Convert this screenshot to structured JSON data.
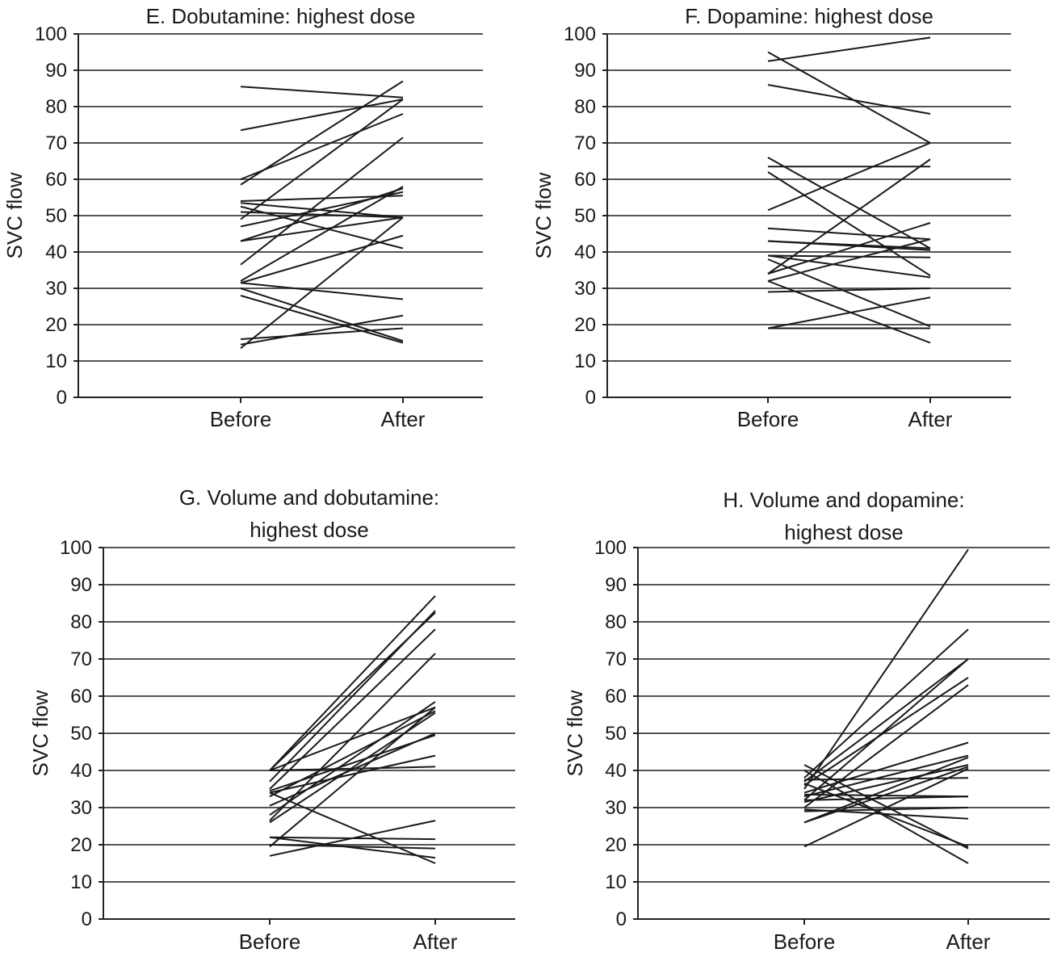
{
  "chart_data": [
    {
      "type": "line",
      "title": "E. Dobutamine: highest dose",
      "title_lines": [
        "E. Dobutamine: highest dose"
      ],
      "xlabel": "",
      "ylabel": "SVC flow",
      "categories": [
        "Before",
        "After"
      ],
      "ylim": [
        0,
        100
      ],
      "yticks": [
        0,
        10,
        20,
        30,
        40,
        50,
        60,
        70,
        80,
        90,
        100
      ],
      "grid": true,
      "series": [
        {
          "values": [
            85.5,
            82.5
          ]
        },
        {
          "values": [
            73.5,
            82.0
          ]
        },
        {
          "values": [
            60.0,
            78.0
          ]
        },
        {
          "values": [
            58.5,
            87.0
          ]
        },
        {
          "values": [
            54.0,
            55.5
          ]
        },
        {
          "values": [
            53.5,
            49.5
          ]
        },
        {
          "values": [
            52.5,
            41.0
          ]
        },
        {
          "values": [
            51.0,
            49.5
          ]
        },
        {
          "values": [
            49.0,
            82.0
          ]
        },
        {
          "values": [
            47.0,
            56.5
          ]
        },
        {
          "values": [
            43.0,
            57.5
          ]
        },
        {
          "values": [
            43.0,
            49.5
          ]
        },
        {
          "values": [
            36.5,
            71.5
          ]
        },
        {
          "values": [
            32.0,
            58.0
          ]
        },
        {
          "values": [
            31.5,
            44.5
          ]
        },
        {
          "values": [
            31.5,
            27.0
          ]
        },
        {
          "values": [
            30.0,
            15.5
          ]
        },
        {
          "values": [
            28.0,
            15.0
          ]
        },
        {
          "values": [
            16.0,
            19.0
          ]
        },
        {
          "values": [
            14.5,
            22.5
          ]
        },
        {
          "values": [
            13.5,
            49.5
          ]
        }
      ]
    },
    {
      "type": "line",
      "title": "F. Dopamine: highest dose",
      "title_lines": [
        "F. Dopamine: highest dose"
      ],
      "xlabel": "",
      "ylabel": "SVC flow",
      "categories": [
        "Before",
        "After"
      ],
      "ylim": [
        0,
        100
      ],
      "yticks": [
        0,
        10,
        20,
        30,
        40,
        50,
        60,
        70,
        80,
        90,
        100
      ],
      "grid": true,
      "series": [
        {
          "values": [
            92.5,
            99.0
          ]
        },
        {
          "values": [
            95.0,
            70.0
          ]
        },
        {
          "values": [
            86.0,
            78.0
          ]
        },
        {
          "values": [
            66.0,
            41.0
          ]
        },
        {
          "values": [
            63.5,
            63.5
          ]
        },
        {
          "values": [
            62.0,
            33.5
          ]
        },
        {
          "values": [
            51.5,
            70.0
          ]
        },
        {
          "values": [
            46.5,
            43.5
          ]
        },
        {
          "values": [
            43.0,
            41.0
          ]
        },
        {
          "values": [
            43.0,
            40.5
          ]
        },
        {
          "values": [
            39.0,
            38.5
          ]
        },
        {
          "values": [
            39.0,
            33.0
          ]
        },
        {
          "values": [
            34.0,
            65.5
          ]
        },
        {
          "values": [
            34.0,
            48.0
          ]
        },
        {
          "values": [
            32.0,
            43.5
          ]
        },
        {
          "values": [
            32.0,
            15.0
          ]
        },
        {
          "values": [
            29.0,
            30.0
          ]
        },
        {
          "values": [
            19.0,
            27.5
          ]
        },
        {
          "values": [
            19.0,
            19.0
          ]
        },
        {
          "values": [
            38.0,
            19.5
          ]
        }
      ]
    },
    {
      "type": "line",
      "title": "G. Volume and dobutamine: highest dose",
      "title_lines": [
        "G. Volume and dobutamine:",
        "highest dose"
      ],
      "xlabel": "",
      "ylabel": "SVC flow",
      "categories": [
        "Before",
        "After"
      ],
      "ylim": [
        0,
        100
      ],
      "yticks": [
        0,
        10,
        20,
        30,
        40,
        50,
        60,
        70,
        80,
        90,
        100
      ],
      "grid": true,
      "series": [
        {
          "values": [
            40.0,
            87.0
          ]
        },
        {
          "values": [
            40.0,
            82.5
          ]
        },
        {
          "values": [
            40.0,
            57.0
          ]
        },
        {
          "values": [
            40.0,
            41.0
          ]
        },
        {
          "values": [
            37.0,
            83.0
          ]
        },
        {
          "values": [
            35.0,
            78.0
          ]
        },
        {
          "values": [
            34.5,
            49.5
          ]
        },
        {
          "values": [
            34.0,
            44.0
          ]
        },
        {
          "values": [
            34.0,
            15.0
          ]
        },
        {
          "values": [
            33.0,
            56.0
          ]
        },
        {
          "values": [
            30.5,
            50.0
          ]
        },
        {
          "values": [
            28.0,
            58.5
          ]
        },
        {
          "values": [
            26.5,
            71.5
          ]
        },
        {
          "values": [
            26.0,
            55.5
          ]
        },
        {
          "values": [
            22.0,
            21.5
          ]
        },
        {
          "values": [
            22.0,
            16.5
          ]
        },
        {
          "values": [
            19.5,
            57.0
          ]
        },
        {
          "values": [
            17.0,
            26.5
          ]
        },
        {
          "values": [
            20.0,
            19.0
          ]
        }
      ]
    },
    {
      "type": "line",
      "title": "H. Volume and dopamine: highest dose",
      "title_lines": [
        "H. Volume and dopamine:",
        "highest dose"
      ],
      "xlabel": "",
      "ylabel": "SVC flow",
      "categories": [
        "Before",
        "After"
      ],
      "ylim": [
        0,
        100
      ],
      "yticks": [
        0,
        10,
        20,
        30,
        40,
        50,
        60,
        70,
        80,
        90,
        100
      ],
      "grid": true,
      "series": [
        {
          "values": [
            35.0,
            99.5
          ]
        },
        {
          "values": [
            38.0,
            78.0
          ]
        },
        {
          "values": [
            37.0,
            70.0
          ]
        },
        {
          "values": [
            32.0,
            70.0
          ]
        },
        {
          "values": [
            36.0,
            65.0
          ]
        },
        {
          "values": [
            30.0,
            63.0
          ]
        },
        {
          "values": [
            41.5,
            19.0
          ]
        },
        {
          "values": [
            40.0,
            15.0
          ]
        },
        {
          "values": [
            36.5,
            19.5
          ]
        },
        {
          "values": [
            34.0,
            47.5
          ]
        },
        {
          "values": [
            33.0,
            44.0
          ]
        },
        {
          "values": [
            37.5,
            38.0
          ]
        },
        {
          "values": [
            31.5,
            41.5
          ]
        },
        {
          "values": [
            33.5,
            33.0
          ]
        },
        {
          "values": [
            29.0,
            30.0
          ]
        },
        {
          "values": [
            29.5,
            27.0
          ]
        },
        {
          "values": [
            26.0,
            43.5
          ]
        },
        {
          "values": [
            26.0,
            41.0
          ]
        },
        {
          "values": [
            19.5,
            40.5
          ]
        },
        {
          "values": [
            32.0,
            33.0
          ]
        }
      ]
    }
  ]
}
